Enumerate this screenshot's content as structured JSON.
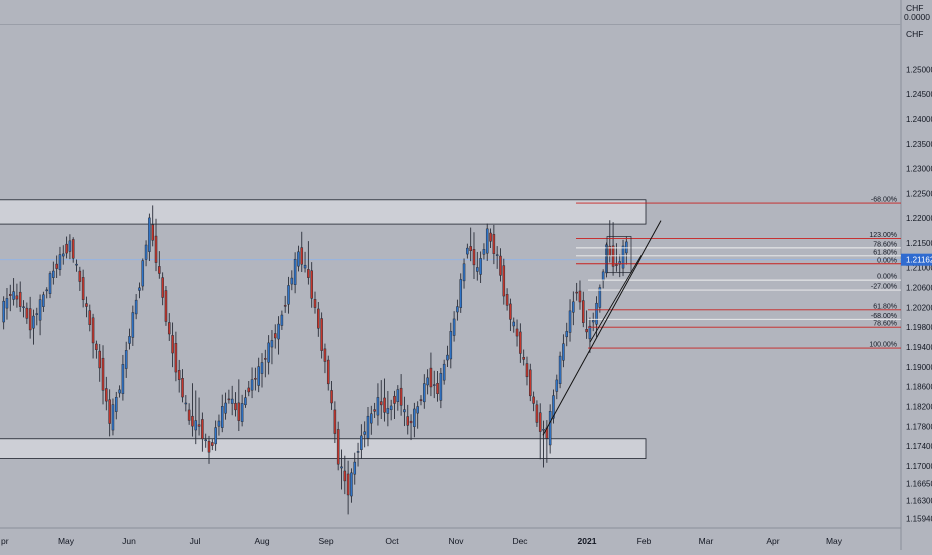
{
  "symbol": {
    "currency_top": "CHF",
    "value_top": "0.0000",
    "currency_axis": "CHF"
  },
  "colors": {
    "background": "#b2b5be",
    "up_candle": "#2f74c8",
    "down_candle": "#c4362c",
    "wick": "#2a2e39",
    "fib_line": "#c8201f",
    "fib_line_light": "#f0f0f0",
    "zone_fill": "#d6d8dd",
    "zone_stroke": "#1e222d",
    "price_line": "#8fb4e8",
    "current_price_bg": "#2f6bd0"
  },
  "chart_data": {
    "type": "candlestick",
    "instrument_currency": "CHF",
    "ylim": [
      1.1575,
      1.264
    ],
    "y_ticks": [
      "1.25000",
      "1.24500",
      "1.24000",
      "1.23500",
      "1.23000",
      "1.22500",
      "1.22000",
      "1.21500",
      "1.21000",
      "1.20600",
      "1.20200",
      "1.19800",
      "1.19400",
      "1.19000",
      "1.18600",
      "1.18200",
      "1.17800",
      "1.17400",
      "1.17000",
      "1.16650",
      "1.16300",
      "1.15940"
    ],
    "x_labels": [
      "pr",
      "May",
      "Jun",
      "Jul",
      "Aug",
      "Sep",
      "Oct",
      "Nov",
      "Dec",
      "2021",
      "Feb",
      "Mar",
      "Apr",
      "May"
    ],
    "current_price": "1.21162",
    "current_price_value": 1.21162,
    "resistance_zone": {
      "top": 1.2237,
      "bottom": 1.2188
    },
    "support_zone": {
      "top": 1.1755,
      "bottom": 1.1715
    },
    "fib_levels": [
      {
        "label": "-68.00%",
        "price": 1.22305,
        "color": "red"
      },
      {
        "label": "123.00%",
        "price": 1.2159,
        "color": "red"
      },
      {
        "label": "78.60%",
        "price": 1.214,
        "color": "light"
      },
      {
        "label": "61.80%",
        "price": 1.2124,
        "color": "light"
      },
      {
        "label": "0.00%",
        "price": 1.2108,
        "color": "red"
      },
      {
        "label": "0.00%",
        "price": 1.2075,
        "color": "light"
      },
      {
        "label": "-27.00%",
        "price": 1.2055,
        "color": "light"
      },
      {
        "label": "61.80%",
        "price": 1.2015,
        "color": "red"
      },
      {
        "label": "-68.00%",
        "price": 1.1996,
        "color": "light"
      },
      {
        "label": "78.60%",
        "price": 1.198,
        "color": "red"
      },
      {
        "label": "100.00%",
        "price": 1.1938,
        "color": "red"
      }
    ],
    "trendline": [
      {
        "date_index": 0,
        "price": 1.1762
      },
      {
        "date_index": 1,
        "price": 1.2195
      }
    ],
    "daily_range": {
      "start": "2020-04-23",
      "end": "2021-01-28"
    },
    "ohlc_summary": [
      {
        "o": 1.2008,
        "h": 1.2072,
        "l": 1.1975,
        "c": 1.205
      },
      {
        "o": 1.205,
        "h": 1.2085,
        "l": 1.201,
        "c": 1.203
      },
      {
        "o": 1.203,
        "h": 1.2055,
        "l": 1.196,
        "c": 1.1985
      },
      {
        "o": 1.1985,
        "h": 1.204,
        "l": 1.195,
        "c": 1.2025
      },
      {
        "o": 1.2025,
        "h": 1.209,
        "l": 1.2005,
        "c": 1.208
      },
      {
        "o": 1.208,
        "h": 1.214,
        "l": 1.206,
        "c": 1.212
      },
      {
        "o": 1.212,
        "h": 1.2175,
        "l": 1.21,
        "c": 1.215
      },
      {
        "o": 1.215,
        "h": 1.216,
        "l": 1.205,
        "c": 1.207
      },
      {
        "o": 1.207,
        "h": 1.209,
        "l": 1.196,
        "c": 1.1985
      },
      {
        "o": 1.1985,
        "h": 1.2,
        "l": 1.186,
        "c": 1.19
      },
      {
        "o": 1.19,
        "h": 1.193,
        "l": 1.176,
        "c": 1.179
      },
      {
        "o": 1.179,
        "h": 1.188,
        "l": 1.177,
        "c": 1.186
      },
      {
        "o": 1.186,
        "h": 1.199,
        "l": 1.184,
        "c": 1.197
      },
      {
        "o": 1.197,
        "h": 1.209,
        "l": 1.195,
        "c": 1.207
      },
      {
        "o": 1.207,
        "h": 1.22,
        "l": 1.205,
        "c": 1.219
      },
      {
        "o": 1.219,
        "h": 1.224,
        "l": 1.206,
        "c": 1.208
      },
      {
        "o": 1.208,
        "h": 1.21,
        "l": 1.194,
        "c": 1.196
      },
      {
        "o": 1.196,
        "h": 1.199,
        "l": 1.184,
        "c": 1.187
      },
      {
        "o": 1.187,
        "h": 1.19,
        "l": 1.177,
        "c": 1.179
      },
      {
        "o": 1.179,
        "h": 1.186,
        "l": 1.175,
        "c": 1.178
      },
      {
        "o": 1.178,
        "h": 1.18,
        "l": 1.17,
        "c": 1.173
      },
      {
        "o": 1.173,
        "h": 1.181,
        "l": 1.171,
        "c": 1.1795
      },
      {
        "o": 1.1795,
        "h": 1.187,
        "l": 1.178,
        "c": 1.184
      },
      {
        "o": 1.184,
        "h": 1.189,
        "l": 1.177,
        "c": 1.18
      },
      {
        "o": 1.18,
        "h": 1.188,
        "l": 1.179,
        "c": 1.186
      },
      {
        "o": 1.186,
        "h": 1.193,
        "l": 1.183,
        "c": 1.189
      },
      {
        "o": 1.189,
        "h": 1.196,
        "l": 1.185,
        "c": 1.194
      },
      {
        "o": 1.194,
        "h": 1.201,
        "l": 1.19,
        "c": 1.198
      },
      {
        "o": 1.198,
        "h": 1.208,
        "l": 1.196,
        "c": 1.206
      },
      {
        "o": 1.206,
        "h": 1.215,
        "l": 1.204,
        "c": 1.213
      },
      {
        "o": 1.213,
        "h": 1.219,
        "l": 1.206,
        "c": 1.208
      },
      {
        "o": 1.208,
        "h": 1.21,
        "l": 1.196,
        "c": 1.198
      },
      {
        "o": 1.198,
        "h": 1.2,
        "l": 1.184,
        "c": 1.187
      },
      {
        "o": 1.187,
        "h": 1.189,
        "l": 1.169,
        "c": 1.171
      },
      {
        "o": 1.171,
        "h": 1.176,
        "l": 1.16,
        "c": 1.165
      },
      {
        "o": 1.165,
        "h": 1.176,
        "l": 1.162,
        "c": 1.174
      },
      {
        "o": 1.174,
        "h": 1.182,
        "l": 1.171,
        "c": 1.179
      },
      {
        "o": 1.179,
        "h": 1.186,
        "l": 1.176,
        "c": 1.183
      },
      {
        "o": 1.183,
        "h": 1.188,
        "l": 1.178,
        "c": 1.181
      },
      {
        "o": 1.181,
        "h": 1.187,
        "l": 1.177,
        "c": 1.185
      },
      {
        "o": 1.185,
        "h": 1.188,
        "l": 1.175,
        "c": 1.178
      },
      {
        "o": 1.178,
        "h": 1.184,
        "l": 1.174,
        "c": 1.182
      },
      {
        "o": 1.182,
        "h": 1.19,
        "l": 1.18,
        "c": 1.188
      },
      {
        "o": 1.188,
        "h": 1.192,
        "l": 1.182,
        "c": 1.185
      },
      {
        "o": 1.185,
        "h": 1.195,
        "l": 1.183,
        "c": 1.193
      },
      {
        "o": 1.193,
        "h": 1.205,
        "l": 1.191,
        "c": 1.203
      },
      {
        "o": 1.203,
        "h": 1.217,
        "l": 1.201,
        "c": 1.215
      },
      {
        "o": 1.215,
        "h": 1.219,
        "l": 1.206,
        "c": 1.209
      },
      {
        "o": 1.209,
        "h": 1.219,
        "l": 1.207,
        "c": 1.217
      },
      {
        "o": 1.217,
        "h": 1.219,
        "l": 1.209,
        "c": 1.212
      },
      {
        "o": 1.212,
        "h": 1.214,
        "l": 1.2,
        "c": 1.202
      },
      {
        "o": 1.202,
        "h": 1.204,
        "l": 1.193,
        "c": 1.196
      },
      {
        "o": 1.196,
        "h": 1.198,
        "l": 1.186,
        "c": 1.188
      },
      {
        "o": 1.188,
        "h": 1.19,
        "l": 1.177,
        "c": 1.179
      },
      {
        "o": 1.179,
        "h": 1.181,
        "l": 1.168,
        "c": 1.176
      },
      {
        "o": 1.176,
        "h": 1.19,
        "l": 1.174,
        "c": 1.188
      },
      {
        "o": 1.188,
        "h": 1.2,
        "l": 1.186,
        "c": 1.198
      },
      {
        "o": 1.198,
        "h": 1.209,
        "l": 1.195,
        "c": 1.206
      },
      {
        "o": 1.206,
        "h": 1.21,
        "l": 1.194,
        "c": 1.196
      },
      {
        "o": 1.196,
        "h": 1.204,
        "l": 1.193,
        "c": 1.202
      },
      {
        "o": 1.202,
        "h": 1.215,
        "l": 1.2,
        "c": 1.214
      },
      {
        "o": 1.214,
        "h": 1.2195,
        "l": 1.208,
        "c": 1.21
      },
      {
        "o": 1.21,
        "h": 1.217,
        "l": 1.207,
        "c": 1.215
      }
    ]
  }
}
